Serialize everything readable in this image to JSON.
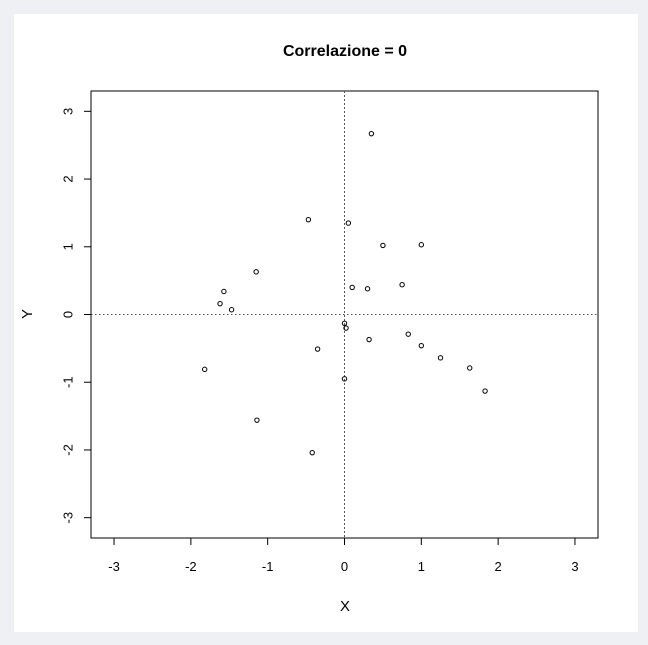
{
  "chart_data": {
    "type": "scatter",
    "title": "Correlazione = 0",
    "xlabel": "X",
    "ylabel": "Y",
    "xlim": [
      -3.3,
      3.3
    ],
    "ylim": [
      -3.3,
      3.3
    ],
    "x_ticks": [
      "-3",
      "-2",
      "-1",
      "0",
      "1",
      "2",
      "3"
    ],
    "y_ticks": [
      "-3",
      "-2",
      "-1",
      "0",
      "1",
      "2",
      "3"
    ],
    "reference_lines": {
      "x": 0,
      "y": 0
    },
    "grid": false,
    "legend": "none",
    "marker": "open-circle",
    "points": [
      {
        "x": 0.35,
        "y": 2.67
      },
      {
        "x": -0.47,
        "y": 1.4
      },
      {
        "x": 0.05,
        "y": 1.35
      },
      {
        "x": 0.5,
        "y": 1.02
      },
      {
        "x": 1.0,
        "y": 1.03
      },
      {
        "x": -1.15,
        "y": 0.63
      },
      {
        "x": 0.75,
        "y": 0.44
      },
      {
        "x": 0.1,
        "y": 0.4
      },
      {
        "x": 0.3,
        "y": 0.38
      },
      {
        "x": -1.57,
        "y": 0.34
      },
      {
        "x": -1.62,
        "y": 0.16
      },
      {
        "x": -1.47,
        "y": 0.07
      },
      {
        "x": 0.0,
        "y": -0.13
      },
      {
        "x": 0.02,
        "y": -0.2
      },
      {
        "x": 0.83,
        "y": -0.29
      },
      {
        "x": 0.32,
        "y": -0.37
      },
      {
        "x": 1.0,
        "y": -0.46
      },
      {
        "x": -0.35,
        "y": -0.51
      },
      {
        "x": 1.25,
        "y": -0.64
      },
      {
        "x": -1.82,
        "y": -0.81
      },
      {
        "x": 1.63,
        "y": -0.79
      },
      {
        "x": 0.0,
        "y": -0.95
      },
      {
        "x": 1.83,
        "y": -1.13
      },
      {
        "x": -1.14,
        "y": -1.56
      },
      {
        "x": -0.42,
        "y": -2.04
      }
    ]
  },
  "colors": {
    "points": "#000000",
    "axes": "#000000",
    "reference": "#555555"
  }
}
